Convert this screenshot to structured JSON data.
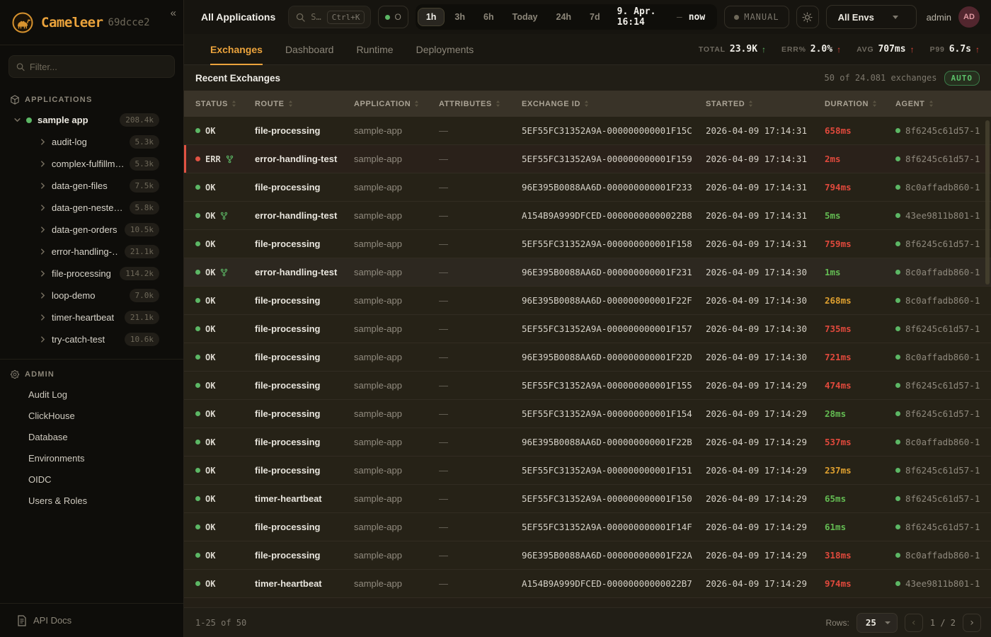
{
  "colors": {
    "accent_orange": "#eba33c",
    "status_ok_green": "#5cb765",
    "status_err_red": "#e05243",
    "duration_green": "#63bb52",
    "duration_amber": "#dfa02f",
    "duration_red": "#e0493c"
  },
  "sidebar": {
    "logo_title": "Cameleer",
    "logo_version": "69dcce2",
    "collapse_icon": "«",
    "filter_placeholder": "Filter...",
    "applications_header": "APPLICATIONS",
    "app_root": {
      "label": "sample app",
      "count": "208.4k"
    },
    "routes": [
      {
        "label": "audit-log",
        "count": "5.3k"
      },
      {
        "label": "complex-fulfillm…",
        "count": "5.3k"
      },
      {
        "label": "data-gen-files",
        "count": "7.5k"
      },
      {
        "label": "data-gen-neste…",
        "count": "5.8k"
      },
      {
        "label": "data-gen-orders",
        "count": "10.5k"
      },
      {
        "label": "error-handling-…",
        "count": "21.1k"
      },
      {
        "label": "file-processing",
        "count": "114.2k"
      },
      {
        "label": "loop-demo",
        "count": "7.0k"
      },
      {
        "label": "timer-heartbeat",
        "count": "21.1k"
      },
      {
        "label": "try-catch-test",
        "count": "10.6k"
      }
    ],
    "admin_header": "ADMIN",
    "admin_items": [
      "Audit Log",
      "ClickHouse",
      "Database",
      "Environments",
      "OIDC",
      "Users & Roles"
    ],
    "api_docs_label": "API Docs"
  },
  "topbar": {
    "title": "All Applications",
    "search_text": "S…",
    "search_kbd": "Ctrl+K",
    "status_filter_label": "O",
    "time_ranges": [
      "1h",
      "3h",
      "6h",
      "Today",
      "24h",
      "7d"
    ],
    "active_range": "1h",
    "time_from": "9. Apr. 16:14",
    "time_separator": "—",
    "time_to": "now",
    "manual_label": "MANUAL",
    "env_select": "All Envs",
    "username": "admin",
    "avatar_initials": "AD"
  },
  "tabs": {
    "items": [
      "Exchanges",
      "Dashboard",
      "Runtime",
      "Deployments"
    ],
    "active": "Exchanges"
  },
  "stats": [
    {
      "label": "TOTAL",
      "value": "23.9K",
      "arrow": "↑",
      "arrow_color": "green"
    },
    {
      "label": "ERR%",
      "value": "2.0%",
      "arrow": "↑",
      "arrow_color": "red"
    },
    {
      "label": "AVG",
      "value": "707ms",
      "arrow": "↑",
      "arrow_color": "red"
    },
    {
      "label": "P99",
      "value": "6.7s",
      "arrow": "↑",
      "arrow_color": "red"
    }
  ],
  "exchanges": {
    "title": "Recent Exchanges",
    "summary": "50 of 24.081 exchanges",
    "auto_badge": "AUTO",
    "columns": [
      "STATUS",
      "ROUTE",
      "APPLICATION",
      "ATTRIBUTES",
      "EXCHANGE ID",
      "STARTED",
      "DURATION",
      "AGENT"
    ],
    "rows": [
      {
        "status": "OK",
        "fork": false,
        "route": "file-processing",
        "application": "sample-app",
        "attributes": "—",
        "exchange_id": "5EF55FC31352A9A-000000000001F15C",
        "started": "2026-04-09 17:14:31",
        "duration": "658ms",
        "duration_color": "red",
        "agent": "8f6245c61d57-1"
      },
      {
        "status": "ERR",
        "fork": true,
        "route": "error-handling-test",
        "application": "sample-app",
        "attributes": "—",
        "exchange_id": "5EF55FC31352A9A-000000000001F159",
        "started": "2026-04-09 17:14:31",
        "duration": "2ms",
        "duration_color": "red",
        "agent": "8f6245c61d57-1",
        "error_row": true
      },
      {
        "status": "OK",
        "fork": false,
        "route": "file-processing",
        "application": "sample-app",
        "attributes": "—",
        "exchange_id": "96E395B0088AA6D-000000000001F233",
        "started": "2026-04-09 17:14:31",
        "duration": "794ms",
        "duration_color": "red",
        "agent": "8c0affadb860-1"
      },
      {
        "status": "OK",
        "fork": true,
        "route": "error-handling-test",
        "application": "sample-app",
        "attributes": "—",
        "exchange_id": "A154B9A999DFCED-00000000000022B8",
        "started": "2026-04-09 17:14:31",
        "duration": "5ms",
        "duration_color": "green",
        "agent": "43ee9811b801-1"
      },
      {
        "status": "OK",
        "fork": false,
        "route": "file-processing",
        "application": "sample-app",
        "attributes": "—",
        "exchange_id": "5EF55FC31352A9A-000000000001F158",
        "started": "2026-04-09 17:14:31",
        "duration": "759ms",
        "duration_color": "red",
        "agent": "8f6245c61d57-1"
      },
      {
        "status": "OK",
        "fork": true,
        "route": "error-handling-test",
        "application": "sample-app",
        "attributes": "—",
        "exchange_id": "96E395B0088AA6D-000000000001F231",
        "started": "2026-04-09 17:14:30",
        "duration": "1ms",
        "duration_color": "green",
        "agent": "8c0affadb860-1",
        "highlighted": true
      },
      {
        "status": "OK",
        "fork": false,
        "route": "file-processing",
        "application": "sample-app",
        "attributes": "—",
        "exchange_id": "96E395B0088AA6D-000000000001F22F",
        "started": "2026-04-09 17:14:30",
        "duration": "268ms",
        "duration_color": "amber",
        "agent": "8c0affadb860-1"
      },
      {
        "status": "OK",
        "fork": false,
        "route": "file-processing",
        "application": "sample-app",
        "attributes": "—",
        "exchange_id": "5EF55FC31352A9A-000000000001F157",
        "started": "2026-04-09 17:14:30",
        "duration": "735ms",
        "duration_color": "red",
        "agent": "8f6245c61d57-1"
      },
      {
        "status": "OK",
        "fork": false,
        "route": "file-processing",
        "application": "sample-app",
        "attributes": "—",
        "exchange_id": "96E395B0088AA6D-000000000001F22D",
        "started": "2026-04-09 17:14:30",
        "duration": "721ms",
        "duration_color": "red",
        "agent": "8c0affadb860-1"
      },
      {
        "status": "OK",
        "fork": false,
        "route": "file-processing",
        "application": "sample-app",
        "attributes": "—",
        "exchange_id": "5EF55FC31352A9A-000000000001F155",
        "started": "2026-04-09 17:14:29",
        "duration": "474ms",
        "duration_color": "red",
        "agent": "8f6245c61d57-1"
      },
      {
        "status": "OK",
        "fork": false,
        "route": "file-processing",
        "application": "sample-app",
        "attributes": "—",
        "exchange_id": "5EF55FC31352A9A-000000000001F154",
        "started": "2026-04-09 17:14:29",
        "duration": "28ms",
        "duration_color": "green",
        "agent": "8f6245c61d57-1"
      },
      {
        "status": "OK",
        "fork": false,
        "route": "file-processing",
        "application": "sample-app",
        "attributes": "—",
        "exchange_id": "96E395B0088AA6D-000000000001F22B",
        "started": "2026-04-09 17:14:29",
        "duration": "537ms",
        "duration_color": "red",
        "agent": "8c0affadb860-1"
      },
      {
        "status": "OK",
        "fork": false,
        "route": "file-processing",
        "application": "sample-app",
        "attributes": "—",
        "exchange_id": "5EF55FC31352A9A-000000000001F151",
        "started": "2026-04-09 17:14:29",
        "duration": "237ms",
        "duration_color": "amber",
        "agent": "8f6245c61d57-1"
      },
      {
        "status": "OK",
        "fork": false,
        "route": "timer-heartbeat",
        "application": "sample-app",
        "attributes": "—",
        "exchange_id": "5EF55FC31352A9A-000000000001F150",
        "started": "2026-04-09 17:14:29",
        "duration": "65ms",
        "duration_color": "green",
        "agent": "8f6245c61d57-1"
      },
      {
        "status": "OK",
        "fork": false,
        "route": "file-processing",
        "application": "sample-app",
        "attributes": "—",
        "exchange_id": "5EF55FC31352A9A-000000000001F14F",
        "started": "2026-04-09 17:14:29",
        "duration": "61ms",
        "duration_color": "green",
        "agent": "8f6245c61d57-1"
      },
      {
        "status": "OK",
        "fork": false,
        "route": "file-processing",
        "application": "sample-app",
        "attributes": "—",
        "exchange_id": "96E395B0088AA6D-000000000001F22A",
        "started": "2026-04-09 17:14:29",
        "duration": "318ms",
        "duration_color": "red",
        "agent": "8c0affadb860-1"
      },
      {
        "status": "OK",
        "fork": false,
        "route": "timer-heartbeat",
        "application": "sample-app",
        "attributes": "—",
        "exchange_id": "A154B9A999DFCED-00000000000022B7",
        "started": "2026-04-09 17:14:29",
        "duration": "974ms",
        "duration_color": "red",
        "agent": "43ee9811b801-1"
      }
    ]
  },
  "footer": {
    "range_text": "1-25 of 50",
    "rows_label": "Rows:",
    "rows_per_page": "25",
    "page_indicator": "1 / 2",
    "prev_icon": "‹",
    "next_icon": "›"
  }
}
